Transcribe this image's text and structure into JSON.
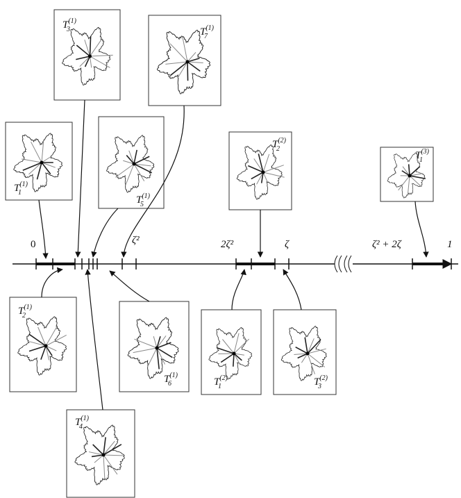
{
  "nodes": [
    {
      "symbol": "T",
      "sub": "1",
      "sup": "(1)"
    },
    {
      "symbol": "T",
      "sub": "2",
      "sup": "(1)"
    },
    {
      "symbol": "T",
      "sub": "3",
      "sup": "(1)"
    },
    {
      "symbol": "T",
      "sub": "4",
      "sup": "(1)"
    },
    {
      "symbol": "T",
      "sub": "5",
      "sup": "(1)"
    },
    {
      "symbol": "T",
      "sub": "6",
      "sup": "(1)"
    },
    {
      "symbol": "T",
      "sub": "7",
      "sup": "(1)"
    },
    {
      "symbol": "T",
      "sub": "1",
      "sup": "(2)"
    },
    {
      "symbol": "T",
      "sub": "2",
      "sup": "(2)"
    },
    {
      "symbol": "T",
      "sub": "3",
      "sup": "(2)"
    },
    {
      "symbol": "T",
      "sub": "1",
      "sup": "(3)"
    }
  ],
  "axis_labels": [
    "0",
    "ζ²",
    "2ζ²",
    "ζ",
    "ζ² + 2ζ",
    "1"
  ]
}
